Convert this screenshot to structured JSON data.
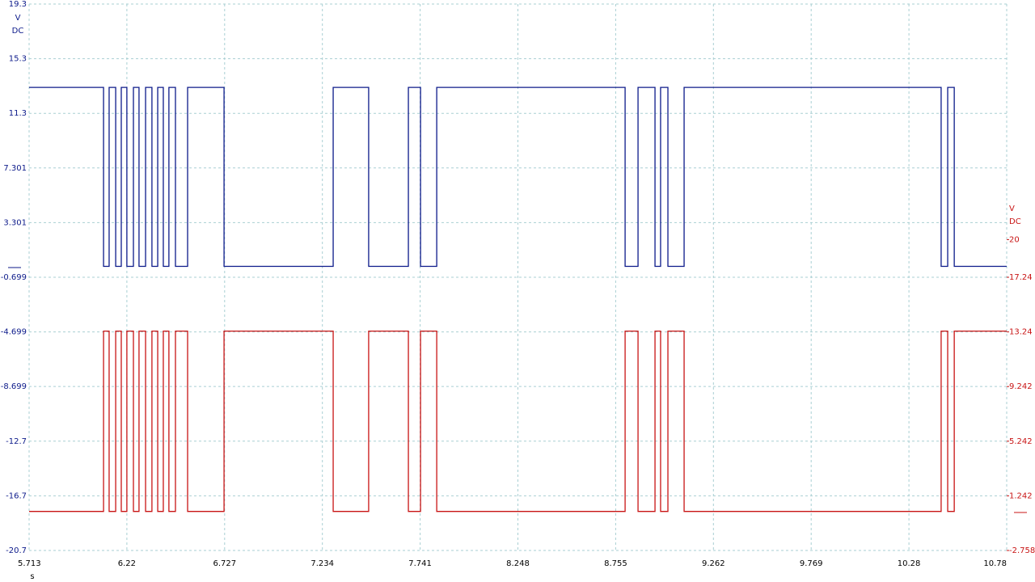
{
  "chart_data": {
    "type": "line",
    "xlabel": "s",
    "ylabel_lines": [
      "V",
      "DC"
    ],
    "y2label_lines": [
      "V",
      "DC"
    ],
    "x": [
      5.713,
      6.099,
      6.099,
      6.128,
      6.128,
      6.162,
      6.162,
      6.191,
      6.191,
      6.22,
      6.22,
      6.254,
      6.254,
      6.283,
      6.283,
      6.317,
      6.317,
      6.35,
      6.35,
      6.38,
      6.38,
      6.409,
      6.409,
      6.438,
      6.438,
      6.472,
      6.472,
      6.535,
      6.535,
      6.724,
      6.724,
      7.29,
      7.29,
      7.474,
      7.474,
      7.68,
      7.68,
      7.743,
      7.743,
      7.827,
      7.827,
      8.804,
      8.804,
      8.871,
      8.871,
      8.959,
      8.959,
      8.988,
      8.988,
      9.026,
      9.026,
      9.11,
      9.11,
      10.443,
      10.443,
      10.477,
      10.477,
      10.511,
      10.511,
      10.783
    ],
    "series": [
      {
        "color": "#0c1a8a",
        "axis": "y",
        "values": [
          13.2,
          13.2,
          0.1,
          0.1,
          13.2,
          13.2,
          0.1,
          0.1,
          13.2,
          13.2,
          0.1,
          0.1,
          13.2,
          13.2,
          0.1,
          0.1,
          13.2,
          13.2,
          0.1,
          0.1,
          13.2,
          13.2,
          0.1,
          0.1,
          13.2,
          13.2,
          0.1,
          0.1,
          13.2,
          13.2,
          0.1,
          0.1,
          13.2,
          13.2,
          0.1,
          0.1,
          13.2,
          13.2,
          0.1,
          0.1,
          13.2,
          13.2,
          0.1,
          0.1,
          13.2,
          13.2,
          0.1,
          0.1,
          13.2,
          13.2,
          0.1,
          0.1,
          13.2,
          13.2,
          0.1,
          0.1,
          13.2,
          13.2,
          0.1,
          0.1
        ]
      },
      {
        "color": "#c81414",
        "axis": "y2",
        "values": [
          0.1,
          0.1,
          13.3,
          13.3,
          0.1,
          0.1,
          13.3,
          13.3,
          0.1,
          0.1,
          13.3,
          13.3,
          0.1,
          0.1,
          13.3,
          13.3,
          0.1,
          0.1,
          13.3,
          13.3,
          0.1,
          0.1,
          13.3,
          13.3,
          0.1,
          0.1,
          13.3,
          13.3,
          0.1,
          0.1,
          13.3,
          13.3,
          0.1,
          0.1,
          13.3,
          13.3,
          0.1,
          0.1,
          13.3,
          13.3,
          0.1,
          0.1,
          13.3,
          13.3,
          0.1,
          0.1,
          13.3,
          13.3,
          0.1,
          0.1,
          13.3,
          13.3,
          0.1,
          0.1,
          13.3,
          13.3,
          0.1,
          0.1,
          13.3,
          13.3
        ]
      }
    ],
    "xlim": [
      5.713,
      10.783
    ],
    "xticks": [
      5.713,
      6.22,
      6.727,
      7.234,
      7.741,
      8.248,
      8.755,
      9.262,
      9.769,
      {
        "value": 10.276,
        "label": "10.28"
      },
      {
        "value": 10.783,
        "label": "10.78"
      }
    ],
    "ylim": [
      -20.7,
      19.3
    ],
    "yticks": [
      19.3,
      15.3,
      11.3,
      7.301,
      3.301,
      -0.699,
      -4.699,
      -8.699,
      -12.7,
      -16.7,
      -20.7
    ],
    "y2lim": [
      -2.758,
      37.242
    ],
    "y2ticks": [
      20.0,
      {
        "value": 17.242,
        "label": "17.24"
      },
      {
        "value": 13.242,
        "label": "13.24"
      },
      9.242,
      5.242,
      1.242,
      -2.758
    ],
    "y_color": "#0c1a8a",
    "y2_color": "#c81414",
    "grid": true
  }
}
